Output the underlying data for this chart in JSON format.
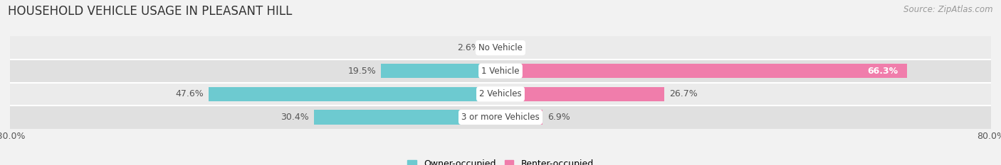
{
  "title": "HOUSEHOLD VEHICLE USAGE IN PLEASANT HILL",
  "source": "Source: ZipAtlas.com",
  "categories": [
    "No Vehicle",
    "1 Vehicle",
    "2 Vehicles",
    "3 or more Vehicles"
  ],
  "owner_values": [
    2.6,
    19.5,
    47.6,
    30.4
  ],
  "renter_values": [
    0.0,
    66.3,
    26.7,
    6.9
  ],
  "owner_color": "#6dcad0",
  "renter_color": "#f07dab",
  "background_color": "#f2f2f2",
  "xlim": [
    -80,
    80
  ],
  "legend_owner": "Owner-occupied",
  "legend_renter": "Renter-occupied",
  "title_fontsize": 12,
  "source_fontsize": 8.5,
  "label_fontsize": 9,
  "category_fontsize": 8.5,
  "bar_height": 0.62,
  "row_colors": [
    "#ebebeb",
    "#e0e0e0",
    "#ebebeb",
    "#e0e0e0"
  ]
}
